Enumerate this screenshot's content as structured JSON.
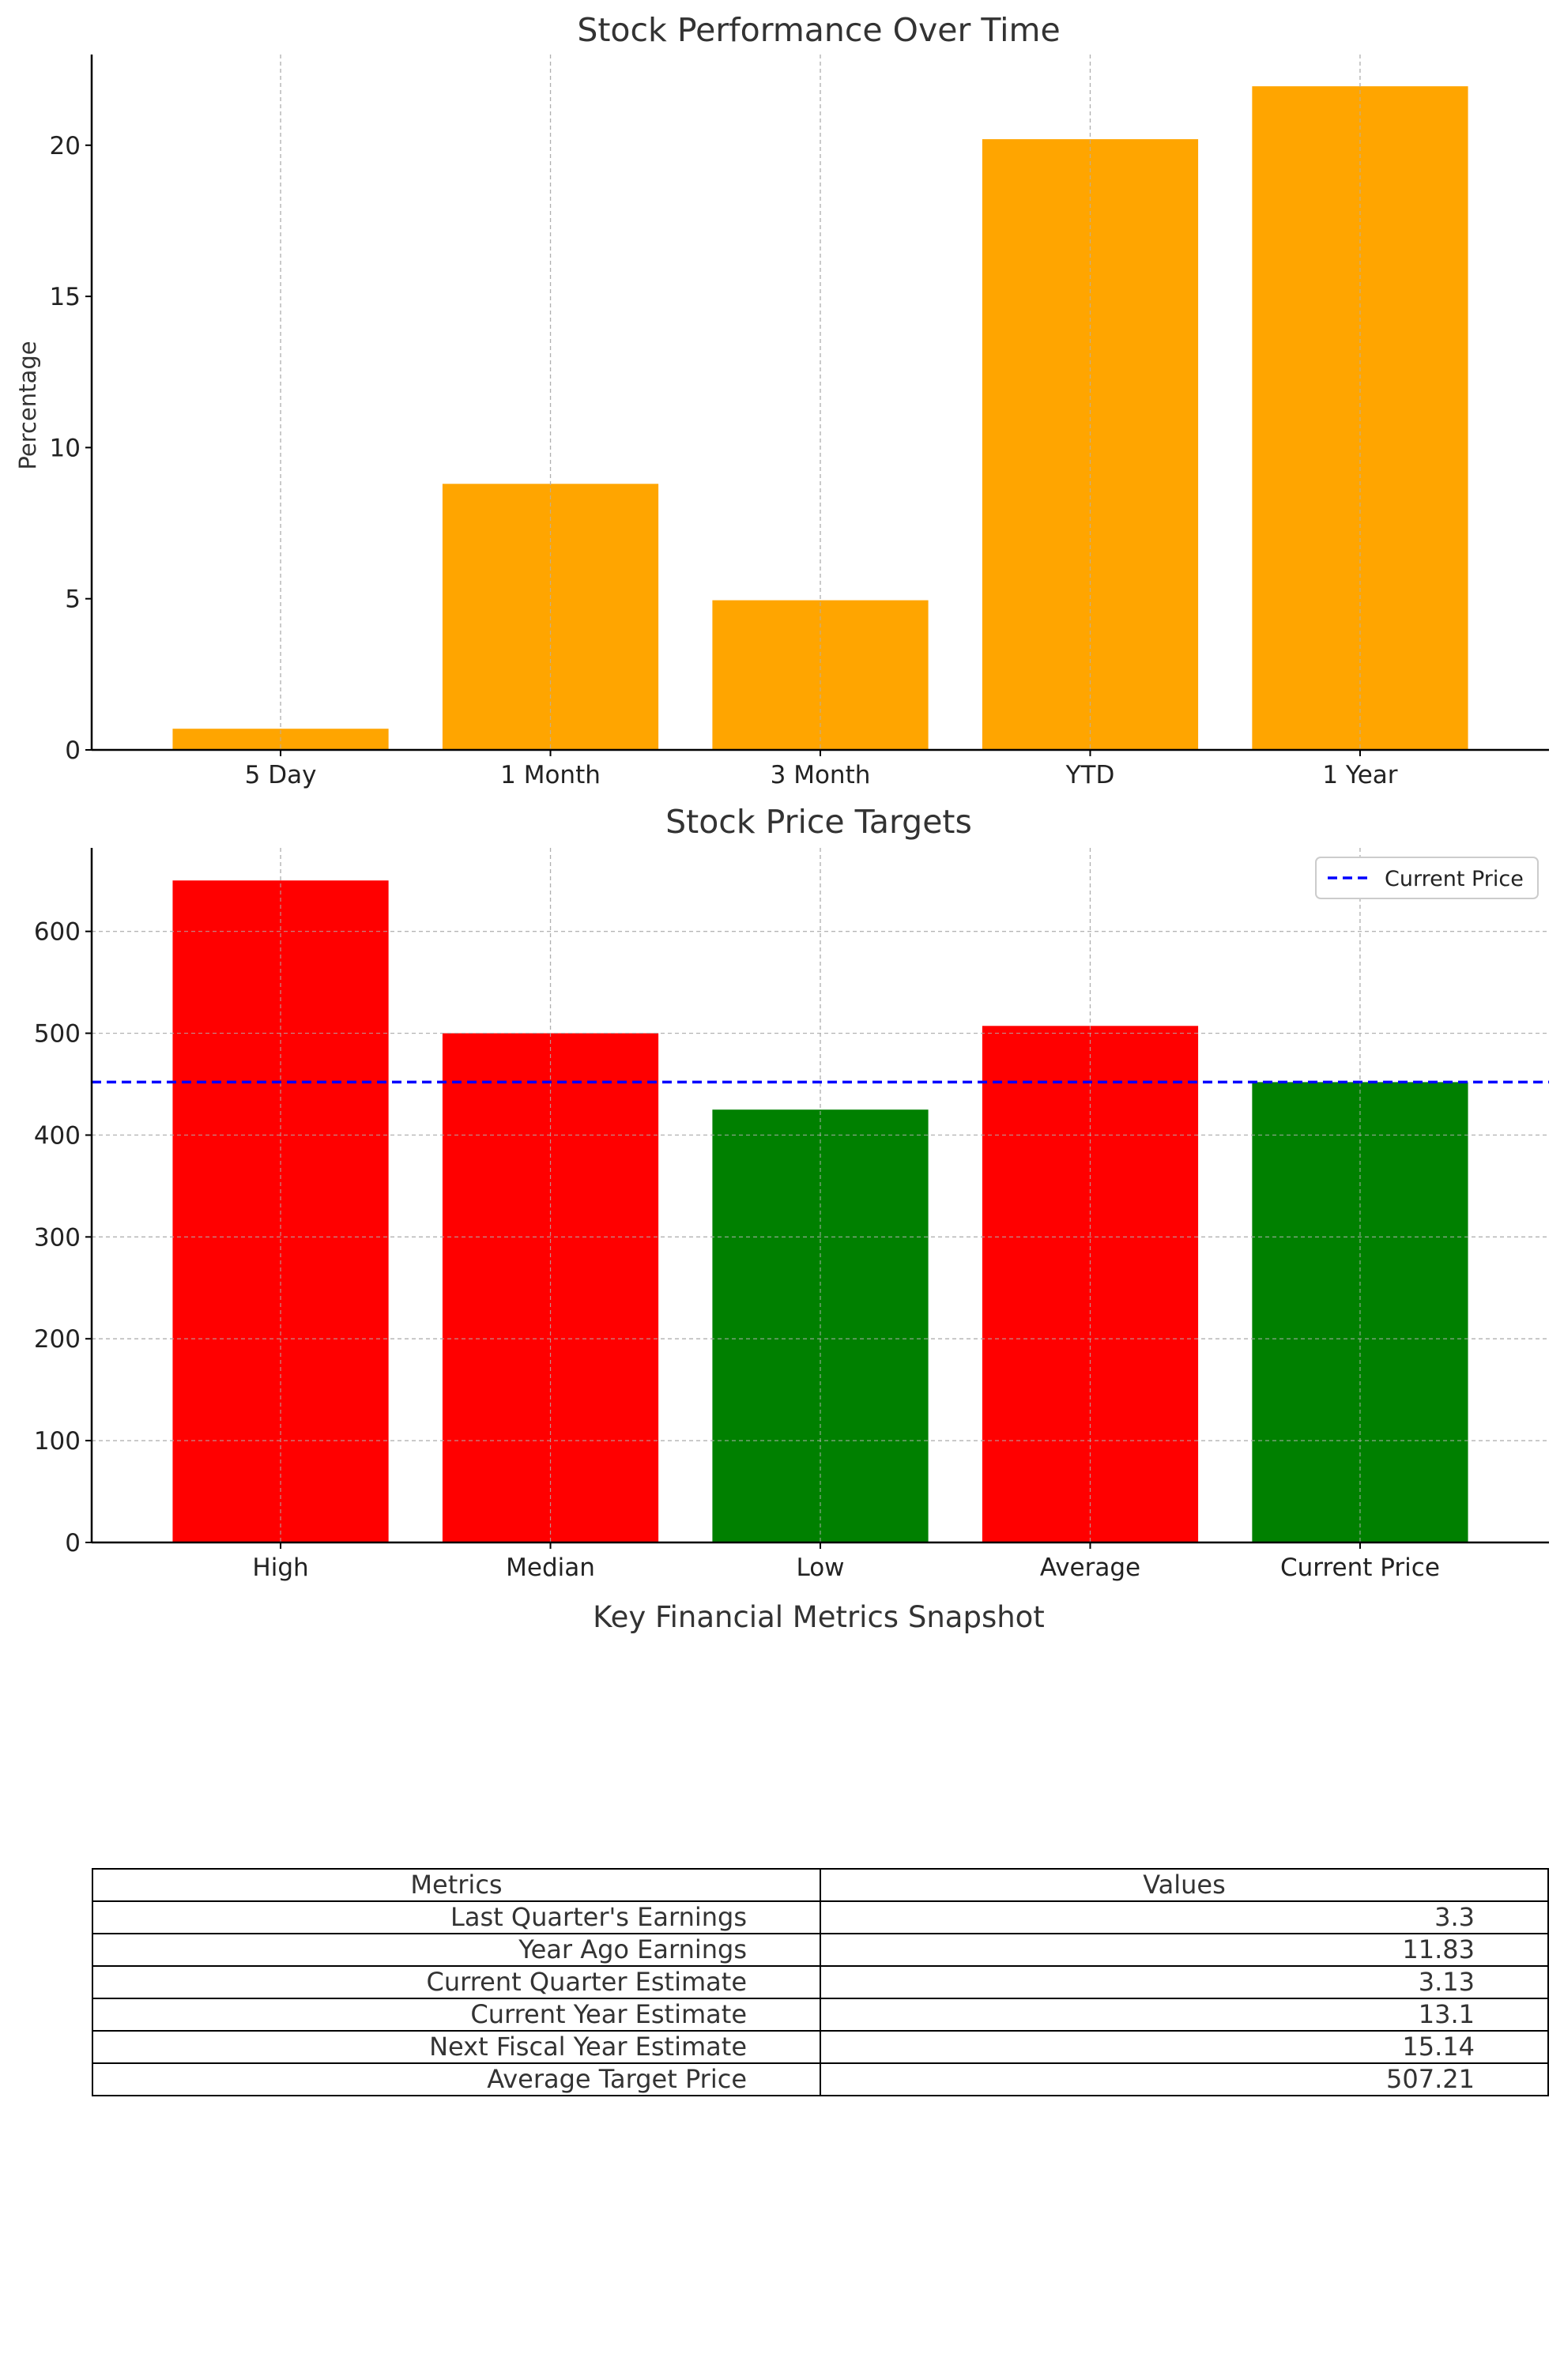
{
  "chart_data": [
    {
      "type": "bar",
      "title": "Stock Performance Over Time",
      "ylabel": "Percentage",
      "xlabel": "",
      "categories": [
        "5 Day",
        "1 Month",
        "3 Month",
        "YTD",
        "1 Year"
      ],
      "values": [
        0.7,
        8.8,
        4.95,
        20.2,
        21.95
      ],
      "ylim": [
        0,
        23
      ],
      "yticks": [
        0,
        5,
        10,
        15,
        20
      ],
      "bar_color": "#FFA500",
      "grid": "vertical dashed"
    },
    {
      "type": "bar",
      "title": "Stock Price Targets",
      "xlabel": "",
      "ylabel": "",
      "categories": [
        "High",
        "Median",
        "Low",
        "Average",
        "Current Price"
      ],
      "values": [
        650,
        500,
        425,
        507.21,
        452
      ],
      "bar_colors": [
        "#FF0000",
        "#FF0000",
        "#008000",
        "#FF0000",
        "#008000"
      ],
      "ylim": [
        0,
        682
      ],
      "yticks": [
        0,
        100,
        200,
        300,
        400,
        500,
        600
      ],
      "reference_line": {
        "label": "Current Price",
        "value": 452,
        "color": "#0000FF",
        "style": "dashed"
      },
      "legend": {
        "position": "top-right",
        "entries": [
          "Current Price"
        ]
      },
      "grid": "both dashed"
    },
    {
      "type": "table",
      "title": "Key Financial Metrics Snapshot",
      "columns": [
        "Metrics",
        "Values"
      ],
      "rows": [
        [
          "Last Quarter's Earnings",
          "3.3"
        ],
        [
          "Year Ago Earnings",
          "11.83"
        ],
        [
          "Current Quarter Estimate",
          "3.13"
        ],
        [
          "Current Year Estimate",
          "13.1"
        ],
        [
          "Next Fiscal Year Estimate",
          "15.14"
        ],
        [
          "Average Target Price",
          "507.21"
        ]
      ]
    }
  ]
}
